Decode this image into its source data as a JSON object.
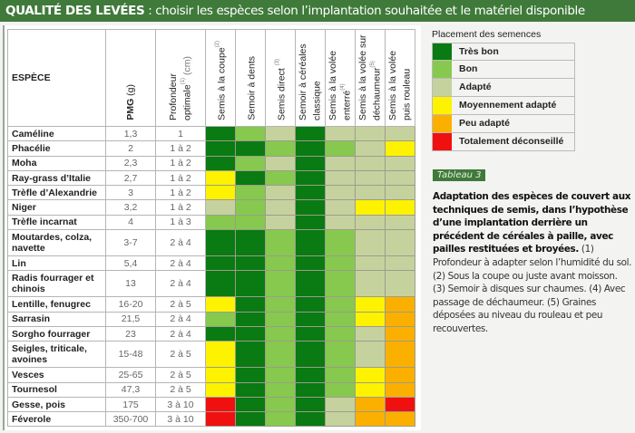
{
  "title": {
    "bold": "QUALITÉ DES LEVÉES",
    "rest": " : choisir les espèces selon l’implantation souhaitée et le matériel disponible"
  },
  "table": {
    "headers": {
      "species": "ESPÈCE",
      "pmg": "PMG",
      "pmg_unit": " (g)",
      "depth": "Profondeur optimale",
      "depth_sup": "(1)",
      "depth_unit": " (cm)",
      "techniques": [
        {
          "label": "Semis à la coupe",
          "sup": "(2)"
        },
        {
          "label": "Semoir à dents",
          "sup": ""
        },
        {
          "label": "Semis direct ",
          "sup": "(3)"
        },
        {
          "label": "Semoir à céréales classique",
          "sup": ""
        },
        {
          "label": "Semis à la volée enterré",
          "sup": "(4)"
        },
        {
          "label": "Semis à la volée sur déchaumeur",
          "sup": "(5)"
        },
        {
          "label": "Semis à la volée puis rouleau",
          "sup": ""
        }
      ]
    },
    "rows": [
      {
        "species": "Caméline",
        "pmg": "1,3",
        "depth": "1",
        "ratings": [
          1,
          2,
          3,
          1,
          3,
          3,
          3
        ]
      },
      {
        "species": "Phacélie",
        "pmg": "2",
        "depth": "1 à 2",
        "ratings": [
          1,
          1,
          2,
          1,
          2,
          3,
          4
        ]
      },
      {
        "species": "Moha",
        "pmg": "2,3",
        "depth": "1 à 2",
        "ratings": [
          1,
          2,
          3,
          1,
          3,
          3,
          3
        ]
      },
      {
        "species": "Ray-grass d’Italie",
        "pmg": "2,7",
        "depth": "1 à 2",
        "ratings": [
          4,
          1,
          2,
          1,
          3,
          3,
          3
        ]
      },
      {
        "species": "Trèfle d’Alexandrie",
        "pmg": "3",
        "depth": "1 à 2",
        "ratings": [
          4,
          2,
          3,
          1,
          3,
          3,
          3
        ]
      },
      {
        "species": "Niger",
        "pmg": "3,2",
        "depth": "1 à 2",
        "ratings": [
          3,
          2,
          3,
          1,
          3,
          4,
          4
        ]
      },
      {
        "species": "Trèfle incarnat",
        "pmg": "4",
        "depth": "1 à 3",
        "ratings": [
          2,
          2,
          3,
          1,
          3,
          3,
          3
        ]
      },
      {
        "species": "Moutardes, colza, navette",
        "pmg": "3-7",
        "depth": "2 à 4",
        "ratings": [
          1,
          1,
          2,
          1,
          2,
          3,
          3
        ],
        "double": true
      },
      {
        "species": "Lin",
        "pmg": "5,4",
        "depth": "2 à 4",
        "ratings": [
          1,
          1,
          2,
          1,
          2,
          3,
          3
        ]
      },
      {
        "species": "Radis fourrager et chinois",
        "pmg": "13",
        "depth": "2 à 4",
        "ratings": [
          1,
          1,
          2,
          1,
          2,
          3,
          3
        ],
        "double": true
      },
      {
        "species": "Lentille, fenugrec",
        "pmg": "16-20",
        "depth": "2 à 5",
        "ratings": [
          4,
          1,
          2,
          1,
          2,
          4,
          5
        ]
      },
      {
        "species": "Sarrasin",
        "pmg": "21,5",
        "depth": "2 à 4",
        "ratings": [
          2,
          1,
          2,
          1,
          2,
          4,
          5
        ]
      },
      {
        "species": "Sorgho fourrager",
        "pmg": "23",
        "depth": "2 à 4",
        "ratings": [
          1,
          1,
          2,
          1,
          2,
          3,
          5
        ]
      },
      {
        "species": "Seigles, triticale, avoines",
        "pmg": "15-48",
        "depth": "2 à 5",
        "ratings": [
          4,
          1,
          2,
          1,
          2,
          3,
          5
        ],
        "double": true
      },
      {
        "species": "Vesces",
        "pmg": "25-65",
        "depth": "2 à 5",
        "ratings": [
          4,
          1,
          2,
          1,
          2,
          4,
          5
        ]
      },
      {
        "species": "Tournesol",
        "pmg": "47,3",
        "depth": "2 à 5",
        "ratings": [
          4,
          1,
          2,
          1,
          2,
          4,
          5
        ]
      },
      {
        "species": "Gesse, pois",
        "pmg": "175",
        "depth": "3 à 10",
        "ratings": [
          6,
          1,
          2,
          1,
          3,
          5,
          6
        ]
      },
      {
        "species": "Féverole",
        "pmg": "350-700",
        "depth": "3 à 10",
        "ratings": [
          6,
          1,
          2,
          1,
          3,
          5,
          5
        ]
      }
    ]
  },
  "legend": {
    "title": "Placement des semences",
    "items": [
      {
        "level": 1,
        "label": "Très bon",
        "color": "#0a7a12"
      },
      {
        "level": 2,
        "label": "Bon",
        "color": "#86c94e"
      },
      {
        "level": 3,
        "label": "Adapté",
        "color": "#c6d29e"
      },
      {
        "level": 4,
        "label": "Moyennement adapté",
        "color": "#fdf200"
      },
      {
        "level": 5,
        "label": "Peu adapté",
        "color": "#fbb000"
      },
      {
        "level": 6,
        "label": "Totalement déconseillé",
        "color": "#f01010"
      }
    ]
  },
  "caption": {
    "badge": "Tableau 3",
    "bold": "Adaptation des espèces de couvert aux techniques de semis, dans l’hypothèse d’une implantation derrière un précédent de céréales à paille, avec pailles restituées et broyées.",
    "notes": " (1) Profondeur à adapter selon l’humidité du sol. (2) Sous la coupe ou juste avant moisson. (3) Semoir à disques sur chaumes. (4) Avec passage de déchaumeur. (5) Graines déposées au niveau du rouleau et peu recouvertes."
  }
}
